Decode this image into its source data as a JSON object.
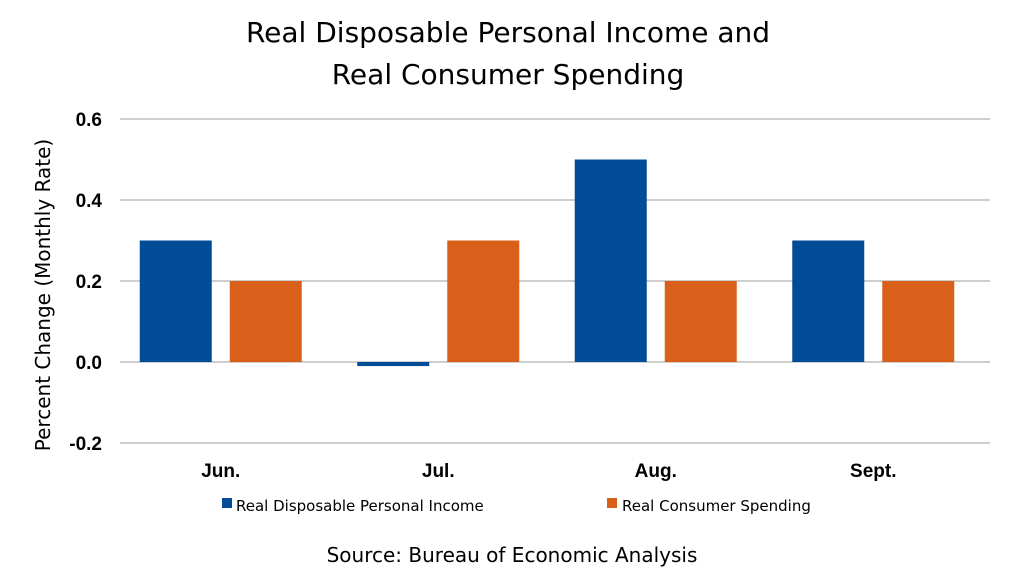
{
  "chart_data": {
    "type": "bar",
    "title": [
      "Real Disposable Personal Income and",
      "Real Consumer Spending"
    ],
    "ylabel": "Percent Change (Monthly Rate)",
    "xlabel": "",
    "categories": [
      "Jun.",
      "Jul.",
      "Aug.",
      "Sept."
    ],
    "series": [
      {
        "name": "Real Disposable Personal Income",
        "values": [
          0.3,
          -0.01,
          0.5,
          0.3
        ],
        "color": "#004C97"
      },
      {
        "name": "Real Consumer Spending",
        "values": [
          0.2,
          0.3,
          0.2,
          0.2
        ],
        "color": "#D9601A"
      }
    ],
    "ylim": [
      -0.2,
      0.6
    ],
    "yticks": [
      -0.2,
      0.0,
      0.2,
      0.4,
      0.6
    ],
    "ytick_labels": [
      "-0.2",
      "0.0",
      "0.2",
      "0.4",
      "0.6"
    ],
    "grid": true,
    "legend": "bottom",
    "source": "Source:  Bureau of Economic Analysis"
  }
}
